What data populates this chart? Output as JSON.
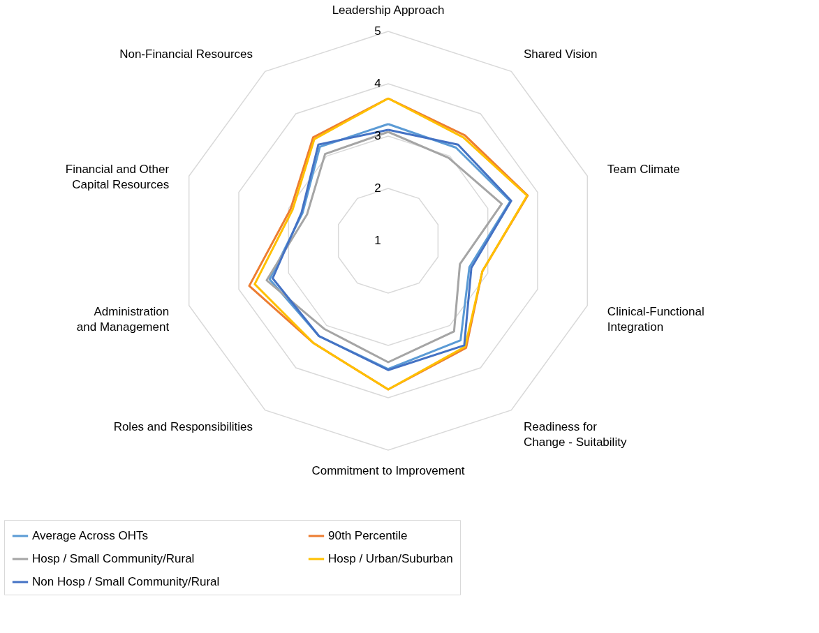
{
  "chart_data": {
    "type": "radar",
    "categories": [
      "Leadership Approach",
      "Shared Vision",
      "Team Climate",
      "Clinical-Functional Integration",
      "Readiness for Change - Suitability",
      "Commitment to Improvement",
      "Roles and Responsibilities",
      "Administration and Management",
      "Financial and Other Capital Resources",
      "Non-Financial Resources"
    ],
    "series": [
      {
        "name": "Average Across OHTs",
        "color": "#5b9bd5",
        "values": [
          3.23,
          3.2,
          3.45,
          2.63,
          3.35,
          3.45,
          3.25,
          3.38,
          2.72,
          3.22
        ]
      },
      {
        "name": "90th Percentile",
        "color": "#ed7d31",
        "values": [
          3.72,
          3.49,
          3.8,
          2.89,
          3.53,
          3.84,
          3.42,
          3.79,
          2.96,
          3.44
        ]
      },
      {
        "name": "Hosp / Small Community/Rural",
        "color": "#a5a5a5",
        "values": [
          3.08,
          2.96,
          3.28,
          2.44,
          3.14,
          3.32,
          3.08,
          3.44,
          2.63,
          3.05
        ]
      },
      {
        "name": "Hosp / Urban/Suburban",
        "color": "#ffc000",
        "values": [
          3.72,
          3.44,
          3.79,
          2.89,
          3.5,
          3.84,
          3.42,
          3.68,
          2.92,
          3.4
        ]
      },
      {
        "name": "Non Hosp / Small Community/Rural",
        "color": "#4472c4",
        "values": [
          3.12,
          3.27,
          3.47,
          2.67,
          3.47,
          3.47,
          3.25,
          3.32,
          2.74,
          3.27
        ]
      }
    ],
    "ylim": [
      1,
      5
    ],
    "yticks": [
      1,
      2,
      3,
      4,
      5
    ],
    "grid": true,
    "legend": "bottom",
    "marker": "none",
    "line_style": "solid"
  }
}
